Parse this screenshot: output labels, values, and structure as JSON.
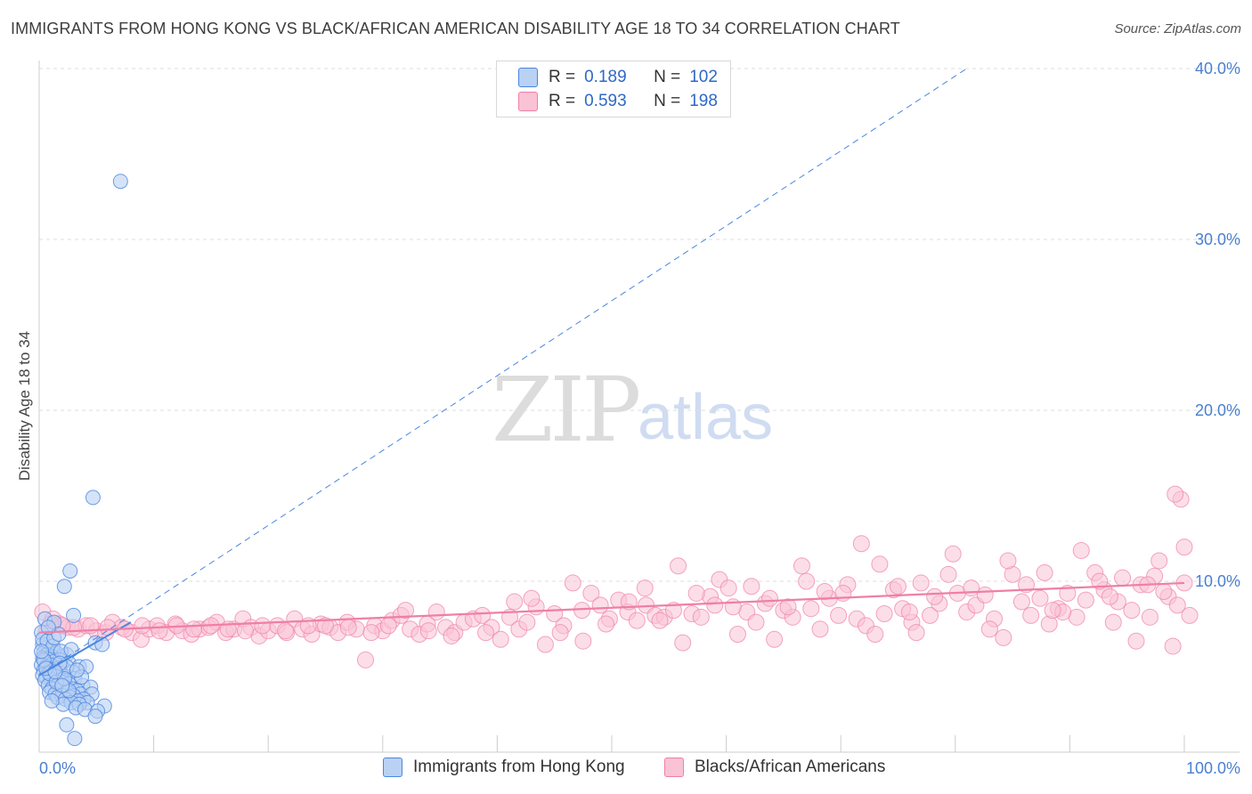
{
  "title": "IMMIGRANTS FROM HONG KONG VS BLACK/AFRICAN AMERICAN DISABILITY AGE 18 TO 34 CORRELATION CHART",
  "source": "Source: ZipAtlas.com",
  "watermark": {
    "zip": "ZIP",
    "atlas": "atlas"
  },
  "colors": {
    "blue": "#4a86e0",
    "pink": "#ef7fa6",
    "blue_fill": "#b9d1f3",
    "pink_fill": "#f9c3d5",
    "tick": "#4a7fd0",
    "grid": "#dedede"
  },
  "legend": {
    "rows": [
      {
        "r_label": "R =",
        "r_value": "0.189",
        "n_label": "N =",
        "n_value": "102"
      },
      {
        "r_label": "R =",
        "r_value": "0.593",
        "n_label": "N =",
        "n_value": "198"
      }
    ]
  },
  "bottom_legend": {
    "series1": "Immigrants from Hong Kong",
    "series2": "Blacks/African Americans"
  },
  "chart_data": {
    "type": "scatter",
    "title": "IMMIGRANTS FROM HONG KONG VS BLACK/AFRICAN AMERICAN DISABILITY AGE 18 TO 34 CORRELATION CHART",
    "xlabel": "",
    "ylabel": "Disability Age 18 to 34",
    "xlim": [
      0,
      100
    ],
    "ylim": [
      0,
      40
    ],
    "x_tick_labels": [
      "0.0%",
      "100.0%"
    ],
    "y_ticks": [
      10,
      20,
      30,
      40
    ],
    "y_tick_labels": [
      "10.0%",
      "20.0%",
      "30.0%",
      "40.0%"
    ],
    "grid": true,
    "legend_position": "top-center",
    "series": [
      {
        "name": "Immigrants from Hong Kong",
        "R": 0.189,
        "N": 102,
        "trend_solid": [
          [
            0.0,
            4.5
          ],
          [
            8.0,
            7.6
          ]
        ],
        "trend_dashed": [
          [
            0.0,
            4.5
          ],
          [
            81.0,
            40.0
          ]
        ],
        "points": [
          [
            7.1,
            33.4
          ],
          [
            4.7,
            14.9
          ],
          [
            2.7,
            10.6
          ],
          [
            2.2,
            9.7
          ],
          [
            3.0,
            8.0
          ],
          [
            0.5,
            7.8
          ],
          [
            1.3,
            7.6
          ],
          [
            0.2,
            7.0
          ],
          [
            4.9,
            6.4
          ],
          [
            5.5,
            6.3
          ],
          [
            0.3,
            6.3
          ],
          [
            0.6,
            6.1
          ],
          [
            1.0,
            6.0
          ],
          [
            0.8,
            5.9
          ],
          [
            0.4,
            5.8
          ],
          [
            1.5,
            5.8
          ],
          [
            2.4,
            5.7
          ],
          [
            0.7,
            5.7
          ],
          [
            1.1,
            5.6
          ],
          [
            0.3,
            5.5
          ],
          [
            0.9,
            5.5
          ],
          [
            1.8,
            5.4
          ],
          [
            0.5,
            5.3
          ],
          [
            1.3,
            5.3
          ],
          [
            2.6,
            5.2
          ],
          [
            0.2,
            5.1
          ],
          [
            1.0,
            5.1
          ],
          [
            3.5,
            5.0
          ],
          [
            4.1,
            5.0
          ],
          [
            0.6,
            5.0
          ],
          [
            1.6,
            4.9
          ],
          [
            2.1,
            4.9
          ],
          [
            0.4,
            4.8
          ],
          [
            1.2,
            4.8
          ],
          [
            0.8,
            4.7
          ],
          [
            2.9,
            4.7
          ],
          [
            1.9,
            4.6
          ],
          [
            0.3,
            4.5
          ],
          [
            1.4,
            4.5
          ],
          [
            2.3,
            4.4
          ],
          [
            0.6,
            4.4
          ],
          [
            1.0,
            4.3
          ],
          [
            3.1,
            4.3
          ],
          [
            1.7,
            4.2
          ],
          [
            0.5,
            4.2
          ],
          [
            2.0,
            4.1
          ],
          [
            1.3,
            4.0
          ],
          [
            2.6,
            4.0
          ],
          [
            0.8,
            3.9
          ],
          [
            1.6,
            3.9
          ],
          [
            3.8,
            3.9
          ],
          [
            4.5,
            3.8
          ],
          [
            2.2,
            3.8
          ],
          [
            1.1,
            3.7
          ],
          [
            2.9,
            3.7
          ],
          [
            3.3,
            3.6
          ],
          [
            1.8,
            3.6
          ],
          [
            0.9,
            3.5
          ],
          [
            2.5,
            3.5
          ],
          [
            3.6,
            3.4
          ],
          [
            1.4,
            3.4
          ],
          [
            4.6,
            3.4
          ],
          [
            2.0,
            3.3
          ],
          [
            3.0,
            3.3
          ],
          [
            1.6,
            3.2
          ],
          [
            2.7,
            3.2
          ],
          [
            3.9,
            3.1
          ],
          [
            2.3,
            3.1
          ],
          [
            3.4,
            3.0
          ],
          [
            2.8,
            2.9
          ],
          [
            4.2,
            2.9
          ],
          [
            3.5,
            2.8
          ],
          [
            2.1,
            2.8
          ],
          [
            5.7,
            2.7
          ],
          [
            3.2,
            2.6
          ],
          [
            4.0,
            2.5
          ],
          [
            5.1,
            2.4
          ],
          [
            4.9,
            2.1
          ],
          [
            2.4,
            1.6
          ],
          [
            3.1,
            0.8
          ],
          [
            0.3,
            6.6
          ],
          [
            0.7,
            6.5
          ],
          [
            1.2,
            6.2
          ],
          [
            1.9,
            5.9
          ],
          [
            0.4,
            5.4
          ],
          [
            2.4,
            5.0
          ],
          [
            0.9,
            4.6
          ],
          [
            1.5,
            4.1
          ],
          [
            2.6,
            3.6
          ],
          [
            1.1,
            3.0
          ],
          [
            0.6,
            4.9
          ],
          [
            1.8,
            5.2
          ],
          [
            2.2,
            4.3
          ],
          [
            3.7,
            4.4
          ],
          [
            0.2,
            5.9
          ],
          [
            1.3,
            6.7
          ],
          [
            2.8,
            6.0
          ],
          [
            1.7,
            6.9
          ],
          [
            0.8,
            7.3
          ],
          [
            3.3,
            4.8
          ],
          [
            2.0,
            3.9
          ],
          [
            1.4,
            4.7
          ]
        ]
      },
      {
        "name": "Blacks/African Americans",
        "R": 0.593,
        "N": 198,
        "trend": [
          [
            0.0,
            7.0
          ],
          [
            100.0,
            9.9
          ]
        ],
        "points": [
          [
            0.3,
            8.2
          ],
          [
            1.2,
            7.8
          ],
          [
            1.8,
            7.5
          ],
          [
            2.5,
            7.3
          ],
          [
            3.4,
            7.2
          ],
          [
            4.1,
            7.4
          ],
          [
            5.0,
            7.1
          ],
          [
            5.8,
            7.0
          ],
          [
            6.4,
            7.6
          ],
          [
            7.2,
            7.3
          ],
          [
            8.1,
            7.0
          ],
          [
            8.9,
            6.6
          ],
          [
            9.6,
            7.2
          ],
          [
            10.3,
            7.4
          ],
          [
            11.1,
            7.0
          ],
          [
            11.9,
            7.5
          ],
          [
            12.5,
            7.1
          ],
          [
            13.3,
            6.9
          ],
          [
            14.0,
            7.2
          ],
          [
            14.8,
            7.3
          ],
          [
            15.5,
            7.6
          ],
          [
            16.3,
            7.0
          ],
          [
            17.0,
            7.2
          ],
          [
            17.8,
            7.8
          ],
          [
            18.5,
            7.3
          ],
          [
            19.2,
            6.8
          ],
          [
            20.0,
            7.1
          ],
          [
            20.8,
            7.4
          ],
          [
            21.6,
            7.0
          ],
          [
            22.3,
            7.8
          ],
          [
            23.0,
            7.2
          ],
          [
            23.8,
            6.9
          ],
          [
            24.6,
            7.5
          ],
          [
            25.4,
            7.3
          ],
          [
            26.1,
            7.0
          ],
          [
            26.9,
            7.6
          ],
          [
            27.7,
            7.2
          ],
          [
            28.5,
            5.4
          ],
          [
            29.3,
            7.4
          ],
          [
            30.0,
            7.1
          ],
          [
            30.8,
            7.7
          ],
          [
            31.6,
            8.0
          ],
          [
            32.4,
            7.2
          ],
          [
            33.2,
            6.9
          ],
          [
            33.9,
            7.5
          ],
          [
            34.7,
            8.2
          ],
          [
            35.5,
            7.3
          ],
          [
            36.3,
            7.0
          ],
          [
            37.1,
            7.6
          ],
          [
            37.9,
            7.8
          ],
          [
            38.7,
            8.0
          ],
          [
            39.5,
            7.3
          ],
          [
            40.3,
            6.6
          ],
          [
            41.1,
            7.9
          ],
          [
            41.9,
            7.2
          ],
          [
            42.6,
            7.6
          ],
          [
            43.4,
            8.5
          ],
          [
            44.2,
            6.3
          ],
          [
            45.0,
            8.1
          ],
          [
            45.8,
            7.4
          ],
          [
            46.6,
            9.9
          ],
          [
            47.4,
            8.3
          ],
          [
            48.2,
            9.3
          ],
          [
            49.0,
            8.6
          ],
          [
            49.8,
            7.8
          ],
          [
            50.6,
            8.9
          ],
          [
            51.4,
            8.2
          ],
          [
            52.2,
            7.7
          ],
          [
            53.0,
            8.6
          ],
          [
            53.8,
            8.0
          ],
          [
            54.6,
            7.9
          ],
          [
            55.4,
            8.3
          ],
          [
            56.2,
            6.4
          ],
          [
            57.0,
            8.1
          ],
          [
            57.8,
            7.9
          ],
          [
            58.6,
            9.1
          ],
          [
            59.4,
            10.1
          ],
          [
            60.2,
            9.6
          ],
          [
            61.0,
            6.9
          ],
          [
            61.8,
            8.2
          ],
          [
            62.6,
            7.6
          ],
          [
            63.4,
            8.7
          ],
          [
            64.2,
            6.6
          ],
          [
            65.0,
            8.3
          ],
          [
            65.8,
            7.9
          ],
          [
            66.6,
            10.9
          ],
          [
            67.4,
            8.4
          ],
          [
            68.2,
            7.2
          ],
          [
            69.0,
            9.0
          ],
          [
            69.8,
            8.0
          ],
          [
            70.6,
            9.8
          ],
          [
            71.4,
            7.8
          ],
          [
            72.2,
            7.4
          ],
          [
            73.0,
            6.9
          ],
          [
            73.8,
            8.1
          ],
          [
            74.6,
            9.5
          ],
          [
            75.4,
            8.4
          ],
          [
            76.2,
            7.6
          ],
          [
            77.0,
            9.9
          ],
          [
            77.8,
            8.0
          ],
          [
            78.6,
            8.7
          ],
          [
            79.4,
            10.4
          ],
          [
            80.2,
            9.3
          ],
          [
            81.0,
            8.2
          ],
          [
            81.8,
            8.6
          ],
          [
            82.6,
            9.2
          ],
          [
            83.4,
            7.8
          ],
          [
            84.2,
            6.7
          ],
          [
            85.0,
            10.4
          ],
          [
            85.8,
            8.8
          ],
          [
            86.6,
            8.0
          ],
          [
            87.4,
            9.0
          ],
          [
            88.2,
            7.5
          ],
          [
            89.0,
            8.4
          ],
          [
            89.8,
            9.3
          ],
          [
            90.6,
            7.9
          ],
          [
            91.4,
            8.9
          ],
          [
            92.2,
            10.5
          ],
          [
            93.0,
            9.5
          ],
          [
            93.8,
            7.6
          ],
          [
            94.6,
            10.2
          ],
          [
            95.4,
            8.3
          ],
          [
            96.2,
            9.8
          ],
          [
            97.0,
            7.9
          ],
          [
            97.8,
            11.2
          ],
          [
            98.6,
            9.1
          ],
          [
            99.4,
            8.6
          ],
          [
            100.0,
            9.9
          ],
          [
            52.9,
            9.6
          ],
          [
            54.2,
            7.7
          ],
          [
            55.8,
            10.9
          ],
          [
            57.4,
            9.3
          ],
          [
            59.0,
            8.6
          ],
          [
            60.6,
            8.5
          ],
          [
            62.2,
            9.7
          ],
          [
            63.8,
            9.0
          ],
          [
            65.4,
            8.5
          ],
          [
            67.0,
            10.0
          ],
          [
            68.6,
            9.4
          ],
          [
            70.2,
            9.3
          ],
          [
            71.8,
            12.2
          ],
          [
            73.4,
            11.0
          ],
          [
            75.0,
            9.7
          ],
          [
            76.6,
            7.0
          ],
          [
            78.2,
            9.1
          ],
          [
            79.8,
            11.6
          ],
          [
            81.4,
            9.6
          ],
          [
            83.0,
            7.2
          ],
          [
            84.6,
            11.2
          ],
          [
            86.2,
            9.8
          ],
          [
            87.8,
            10.5
          ],
          [
            89.4,
            8.2
          ],
          [
            91.0,
            11.8
          ],
          [
            92.6,
            10.0
          ],
          [
            94.2,
            8.8
          ],
          [
            95.8,
            6.5
          ],
          [
            97.4,
            10.3
          ],
          [
            99.0,
            6.2
          ],
          [
            99.7,
            14.8
          ],
          [
            99.2,
            15.1
          ],
          [
            100.0,
            12.0
          ],
          [
            101.5,
            8.0
          ],
          [
            45.5,
            7.0
          ],
          [
            47.5,
            6.5
          ],
          [
            49.5,
            7.5
          ],
          [
            51.5,
            8.8
          ],
          [
            43.0,
            9.0
          ],
          [
            41.5,
            8.8
          ],
          [
            39.0,
            7.0
          ],
          [
            36.0,
            6.8
          ],
          [
            34.0,
            7.1
          ],
          [
            32.0,
            8.3
          ],
          [
            30.5,
            7.4
          ],
          [
            29.0,
            7.0
          ],
          [
            27.0,
            7.3
          ],
          [
            25.0,
            7.4
          ],
          [
            23.5,
            7.4
          ],
          [
            21.5,
            7.1
          ],
          [
            19.5,
            7.4
          ],
          [
            18.0,
            7.1
          ],
          [
            16.5,
            7.2
          ],
          [
            15.0,
            7.4
          ],
          [
            13.5,
            7.2
          ],
          [
            12.0,
            7.4
          ],
          [
            10.5,
            7.1
          ],
          [
            9.0,
            7.4
          ],
          [
            7.5,
            7.2
          ],
          [
            6.0,
            7.3
          ],
          [
            4.5,
            7.4
          ],
          [
            3.0,
            7.3
          ],
          [
            2.0,
            7.4
          ],
          [
            1.0,
            7.5
          ],
          [
            0.6,
            7.0
          ],
          [
            76.0,
            8.2
          ],
          [
            88.5,
            8.3
          ],
          [
            93.5,
            9.1
          ],
          [
            96.8,
            9.8
          ],
          [
            98.2,
            9.4
          ]
        ]
      }
    ]
  }
}
